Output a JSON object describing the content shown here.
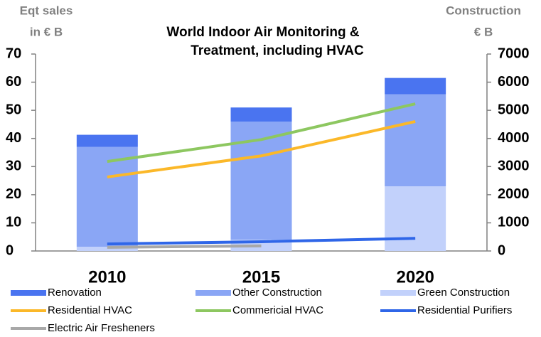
{
  "chart_data": {
    "type": "bar_line",
    "title": [
      "World Indoor Air Monitoring &",
      "Treatment, including HVAC"
    ],
    "ylabel": [
      "Eqt sales",
      "in € B"
    ],
    "y2label": [
      "Construction",
      "€ B"
    ],
    "categories": [
      "2010",
      "2015",
      "2020"
    ],
    "ylim": [
      0,
      70
    ],
    "yticks": [
      0,
      10,
      20,
      30,
      40,
      50,
      60,
      70
    ],
    "y2lim": [
      0,
      7000
    ],
    "y2ticks": [
      0,
      1000,
      2000,
      3000,
      4000,
      5000,
      6000,
      7000
    ],
    "series": [
      {
        "name": "Renovation",
        "type": "bar",
        "axis": "y2",
        "color": "#4a74f0",
        "values": [
          430,
          500,
          580
        ]
      },
      {
        "name": "Other Construction",
        "type": "bar",
        "axis": "y2",
        "color": "#8aa6f5",
        "values": [
          3550,
          4200,
          3270
        ]
      },
      {
        "name": "Green Construction",
        "type": "bar",
        "axis": "y2",
        "color": "#c2d1fb",
        "values": [
          150,
          400,
          2300
        ]
      },
      {
        "name": "Residential HVAC",
        "type": "line",
        "color": "#fbb829",
        "values": [
          26.3,
          33.8,
          46
        ]
      },
      {
        "name": "Commericial HVAC",
        "type": "line",
        "color": "#8dc760",
        "values": [
          31.8,
          39.6,
          52.3
        ]
      },
      {
        "name": "Residential Purifiers",
        "type": "line",
        "color": "#2f66e8",
        "values": [
          2.5,
          3.3,
          4.5
        ]
      },
      {
        "name": "Electric Air Fresheners",
        "type": "line",
        "color": "#a8a8a8",
        "values": [
          1.3,
          1.8,
          null
        ]
      }
    ]
  }
}
